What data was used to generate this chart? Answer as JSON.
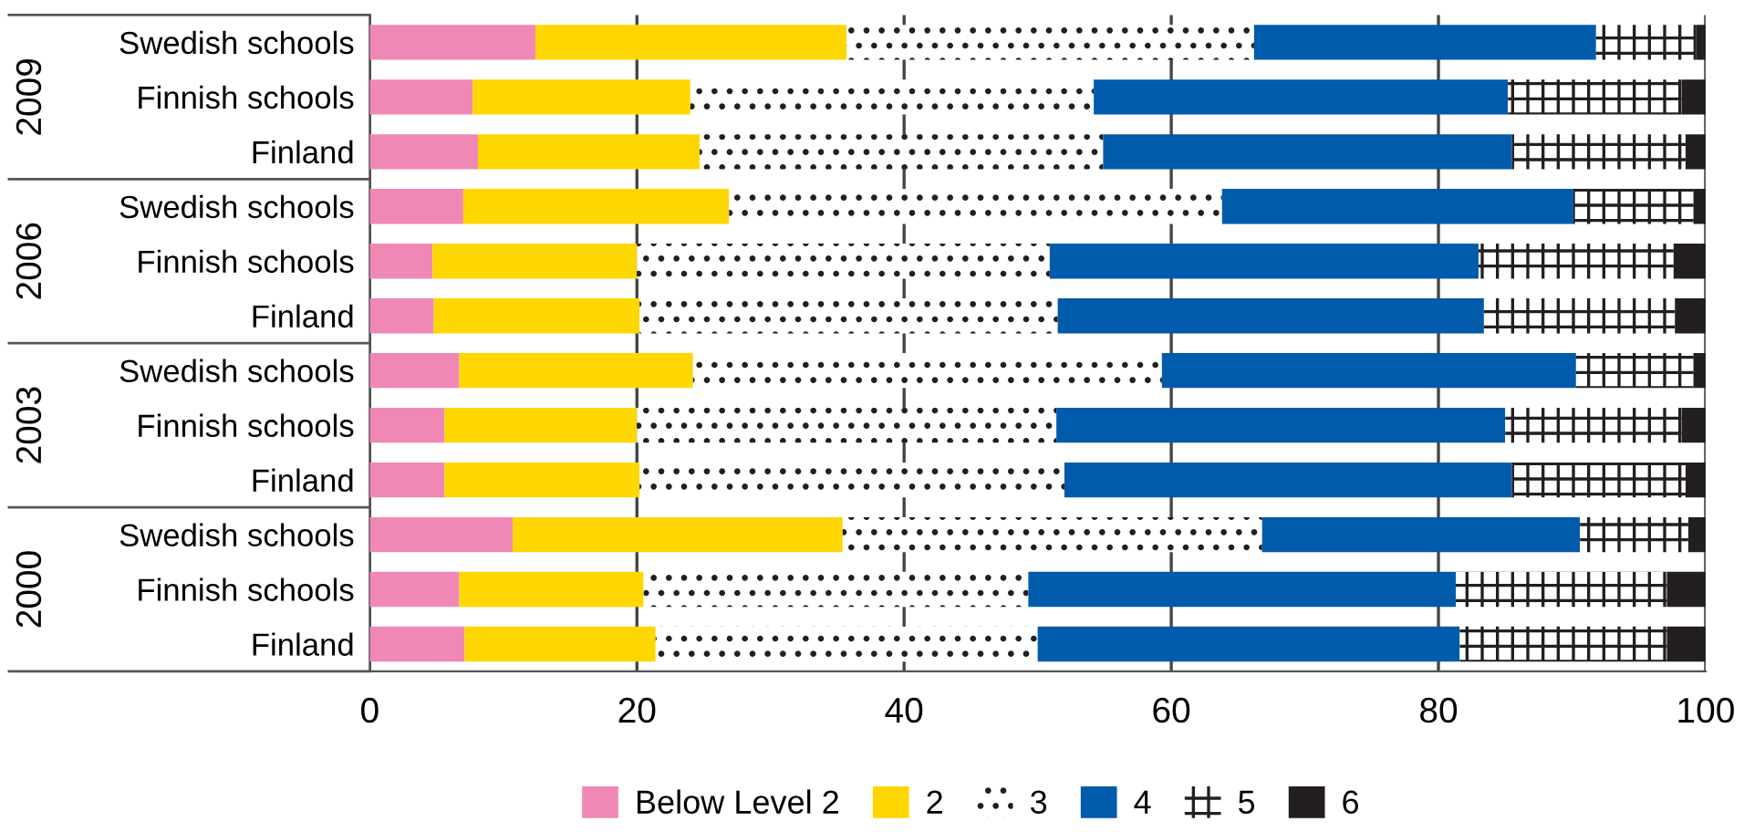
{
  "chart_data": {
    "type": "bar",
    "orientation": "horizontal",
    "stacked": true,
    "categories": [
      "Swedish schools",
      "Finnish schools",
      "Finland",
      "Swedish schools",
      "Finnish schools",
      "Finland",
      "Swedish schools",
      "Finnish schools",
      "Finland",
      "Swedish schools",
      "Finnish schools",
      "Finland"
    ],
    "annotations": [
      "2009",
      "2006",
      "2003",
      "2000"
    ],
    "series": [
      {
        "name": "Below Level 2",
        "color": "#f088b6",
        "values": [
          12.4,
          7.7,
          8.1,
          7.0,
          4.7,
          4.8,
          6.7,
          5.6,
          5.6,
          10.7,
          6.7,
          7.1
        ]
      },
      {
        "name": "2",
        "color": "#ffd700",
        "values": [
          23.3,
          16.3,
          16.6,
          19.9,
          15.3,
          15.4,
          17.5,
          14.4,
          14.6,
          24.7,
          13.8,
          14.3
        ]
      },
      {
        "name": "3",
        "color": "#ffffff",
        "values": [
          30.5,
          30.2,
          30.2,
          36.9,
          30.9,
          31.3,
          35.1,
          31.4,
          31.8,
          31.4,
          28.8,
          28.6
        ]
      },
      {
        "name": "4",
        "color": "#005bab",
        "values": [
          25.6,
          31.0,
          30.6,
          26.3,
          32.1,
          31.9,
          31.0,
          33.6,
          33.5,
          23.8,
          32.0,
          31.6
        ]
      },
      {
        "name": "5",
        "color": "#ffffff",
        "values": [
          7.5,
          13.0,
          13.0,
          9.0,
          14.6,
          14.3,
          8.8,
          13.2,
          13.0,
          8.1,
          15.8,
          15.5
        ]
      },
      {
        "name": "6",
        "color": "#231f20",
        "values": [
          0.7,
          1.8,
          1.5,
          0.9,
          2.4,
          2.3,
          0.9,
          1.8,
          1.5,
          1.3,
          2.9,
          2.9
        ]
      }
    ],
    "xlim": [
      0,
      100
    ],
    "xticks": [
      0,
      20,
      40,
      60,
      80,
      100
    ],
    "grid": "x",
    "legend": "bottom"
  }
}
